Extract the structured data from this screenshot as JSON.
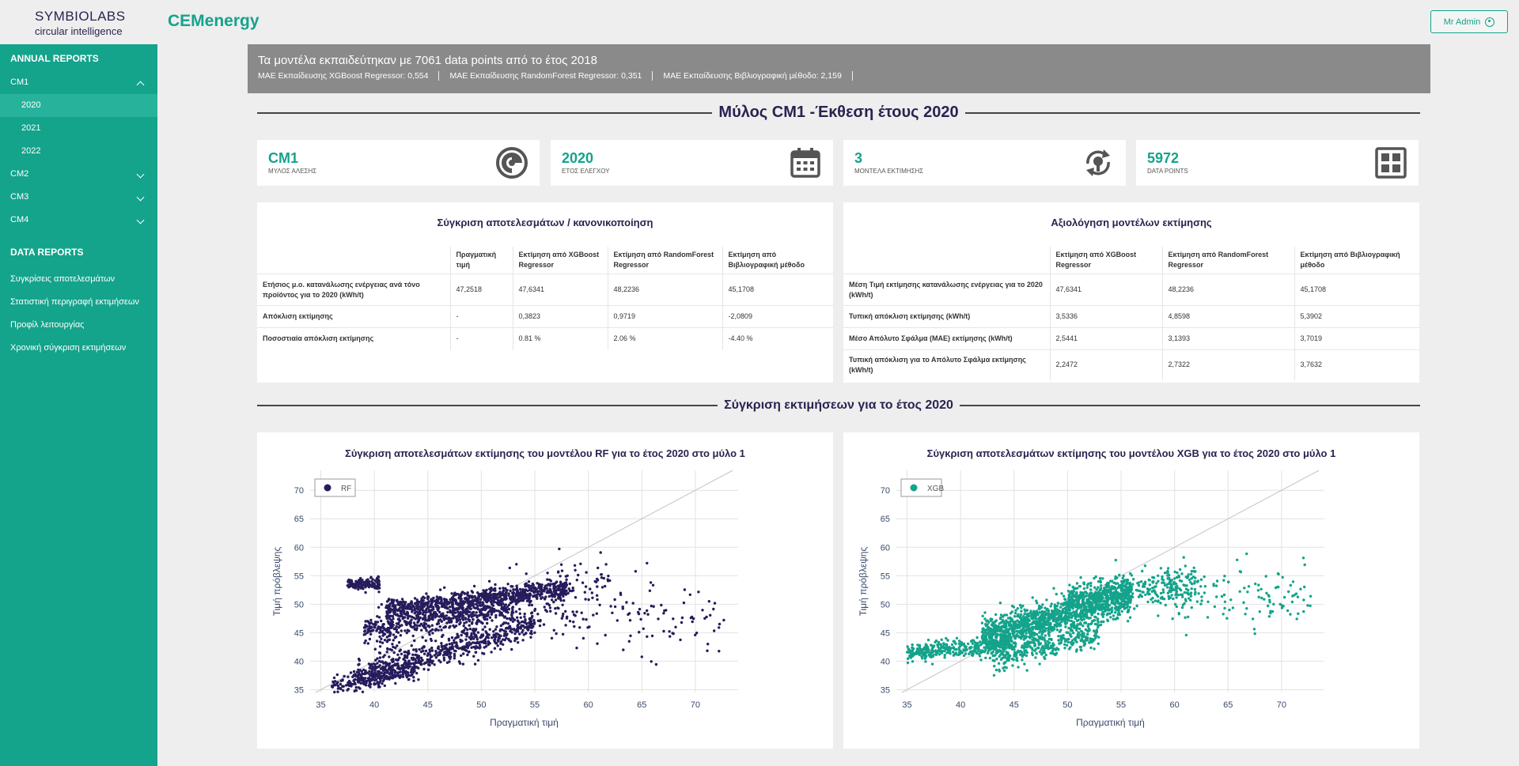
{
  "header": {
    "logo_main": "SYMBIOLABS",
    "logo_sub": "circular intelligence",
    "app_title": "CEMenergy",
    "user_label": "Mr Admin"
  },
  "sidebar": {
    "annual_reports": "ANNUAL REPORTS",
    "cm1": "CM1",
    "years": [
      "2020",
      "2021",
      "2022"
    ],
    "cm2": "CM2",
    "cm3": "CM3",
    "cm4": "CM4",
    "data_reports": "DATA REPORTS",
    "links": [
      "Συγκρίσεις αποτελεσμάτων",
      "Στατιστική περιγραφή εκτιμήσεων",
      "Προφίλ λειτουργίας",
      "Χρονική σύγκριση εκτιμήσεων"
    ]
  },
  "banner": {
    "title": "Τα μοντέλα εκπαιδεύτηκαν με 7061 data points από το έτος 2018",
    "stats": [
      "MAE Εκπαίδευσης XGBoost Regressor: 0,554",
      "MAE Εκπαίδευσης RandomForest Regressor: 0,351",
      "MAE Εκπαίδευσης Βιβλιογραφική μέθοδο: 2,159"
    ]
  },
  "page_title": "Μύλος CM1 -Έκθεση έτους 2020",
  "kpis": [
    {
      "value": "CM1",
      "label": "ΜΥΛΟΣ ΑΛΕΣΗΣ",
      "icon": "mill-icon"
    },
    {
      "value": "2020",
      "label": "ΕΤΟΣ ΕΛΕΓΧΟΥ",
      "icon": "calendar-icon"
    },
    {
      "value": "3",
      "label": "ΜΟΝΤΕΛΑ ΕΚΤΙΜΗΣΗΣ",
      "icon": "model-refresh-icon"
    },
    {
      "value": "5972",
      "label": "DATA POINTS",
      "icon": "grid-icon"
    }
  ],
  "table1": {
    "title": "Σύγκριση αποτελεσμάτων / κανονικοποίηση",
    "headers": [
      "",
      "Πραγματική τιμή",
      "Εκτίμηση από XGBoost Regressor",
      "Εκτίμηση από RandomForest Regressor",
      "Εκτίμηση από Βιβλιογραφική μέθοδο"
    ],
    "rows": [
      [
        "Ετήσιος μ.ο. κατανάλωσης ενέργειας ανά τόνο προϊόντος για το 2020 (kWh/t)",
        "47,2518",
        "47,6341",
        "48,2236",
        "45,1708"
      ],
      [
        "Απόκλιση εκτίμησης",
        "-",
        "0,3823",
        "0,9719",
        "-2,0809"
      ],
      [
        "Ποσοστιαία απόκλιση εκτίμησης",
        "-",
        "0.81 %",
        "2.06 %",
        "-4.40 %"
      ]
    ]
  },
  "table2": {
    "title": "Αξιολόγηση μοντέλων εκτίμησης",
    "headers": [
      "",
      "Εκτίμηση από XGBoost Regressor",
      "Εκτίμηση από RandomForest Regressor",
      "Εκτίμηση από Βιβλιογραφική μέθοδο"
    ],
    "rows": [
      [
        "Μέση Τιμή εκτίμησης κατανάλωσης ενέργειας για το 2020 (kWh/t)",
        "47,6341",
        "48,2236",
        "45,1708"
      ],
      [
        "Τυπική απόκλιση εκτίμησης (kWh/t)",
        "3,5336",
        "4,8598",
        "5,3902"
      ],
      [
        "Μέσο Απόλυτο Σφάλμα (MAE) εκτίμησης (kWh/t)",
        "2,5441",
        "3,1393",
        "3,7019"
      ],
      [
        "Τυπική απόκλιση για το Απόλυτο Σφάλμα εκτίμησης (kWh/t)",
        "2,2472",
        "2,7322",
        "3,7632"
      ]
    ]
  },
  "section2_title": "Σύγκριση εκτιμήσεων για το έτος 2020",
  "chart_data": [
    {
      "type": "scatter",
      "title": "Σύγκριση αποτελεσμάτων εκτίμησης του μοντέλου RF για το έτος 2020 στο μύλο 1",
      "xlabel": "Πραγματική τιμή",
      "ylabel": "Τιμή πρόβλεψης",
      "xlim": [
        34,
        74
      ],
      "ylim": [
        34.5,
        73.5
      ],
      "xticks": [
        35,
        40,
        45,
        50,
        55,
        60,
        65,
        70
      ],
      "yticks": [
        35,
        40,
        45,
        50,
        55,
        60,
        65,
        70
      ],
      "grid": true,
      "legend_position": "top-left",
      "series": [
        {
          "name": "RF",
          "color": "#261c5c"
        }
      ],
      "reference_line": "y = x"
    },
    {
      "type": "scatter",
      "title": "Σύγκριση αποτελεσμάτων εκτίμησης του μοντέλου XGB για το έτος 2020 στο μύλο 1",
      "xlabel": "Πραγματική τιμή",
      "ylabel": "Τιμή πρόβλεψης",
      "xlim": [
        34,
        74
      ],
      "ylim": [
        34.5,
        73.5
      ],
      "xticks": [
        35,
        40,
        45,
        50,
        55,
        60,
        65,
        70
      ],
      "yticks": [
        35,
        40,
        45,
        50,
        55,
        60,
        65,
        70
      ],
      "grid": true,
      "legend_position": "top-left",
      "series": [
        {
          "name": "XGB",
          "color": "#14a38b"
        }
      ],
      "reference_line": "y = x"
    }
  ]
}
